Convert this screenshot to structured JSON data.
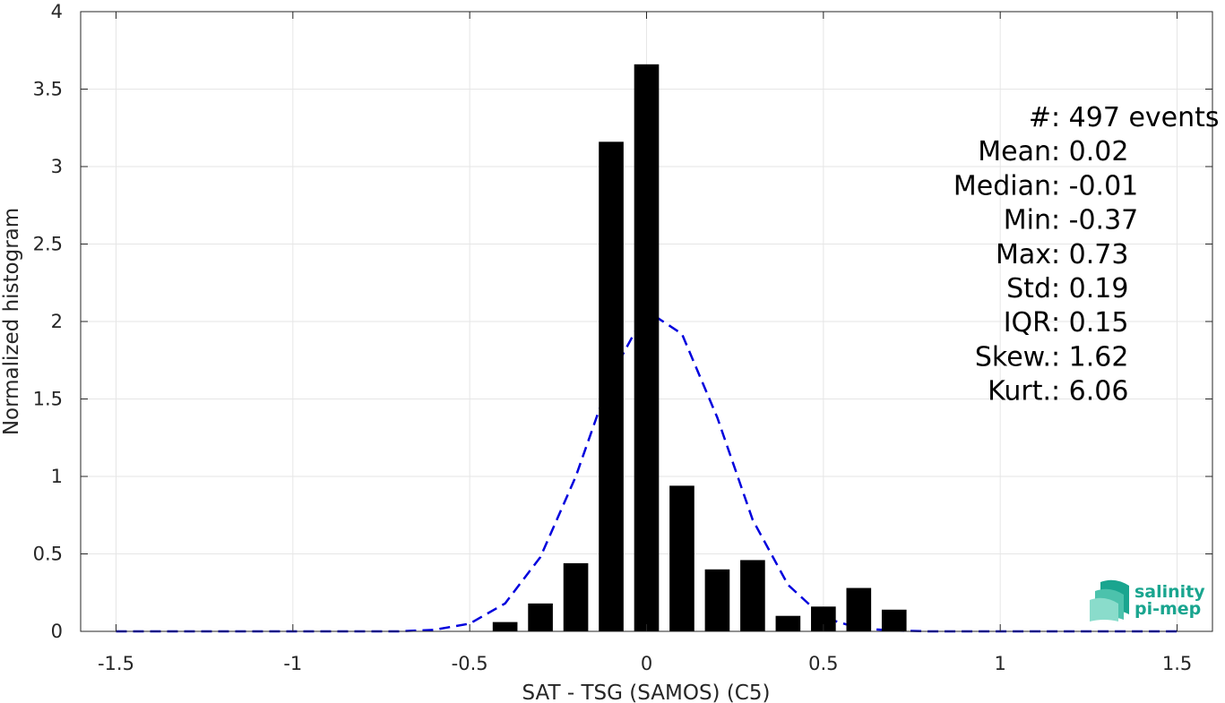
{
  "chart_data": {
    "type": "bar",
    "xlabel": "SAT - TSG (SAMOS) (C5)",
    "ylabel": "Normalized histogram",
    "xlim": [
      -1.6,
      1.6
    ],
    "ylim": [
      0,
      4
    ],
    "xticks": [
      -1.5,
      -1,
      -0.5,
      0,
      0.5,
      1,
      1.5
    ],
    "xtick_labels": [
      "-1.5",
      "-1",
      "-0.5",
      "0",
      "0.5",
      "1",
      "1.5"
    ],
    "yticks": [
      0,
      0.5,
      1,
      1.5,
      2,
      2.5,
      3,
      3.5,
      4
    ],
    "ytick_labels": [
      "0",
      "0.5",
      "1",
      "1.5",
      "2",
      "2.5",
      "3",
      "3.5",
      "4"
    ],
    "grid": true,
    "bar_width": 0.07,
    "bar_color": "#000000",
    "bars": {
      "x": [
        -0.4,
        -0.3,
        -0.2,
        -0.1,
        0.0,
        0.1,
        0.2,
        0.3,
        0.4,
        0.5,
        0.6,
        0.7
      ],
      "values": [
        0.06,
        0.18,
        0.44,
        3.16,
        3.66,
        0.94,
        0.4,
        0.46,
        0.1,
        0.16,
        0.28,
        0.14
      ]
    },
    "fit_curve": {
      "style": "dashed",
      "color": "#0000dd",
      "x": [
        -1.5,
        -1.4,
        -1.3,
        -1.2,
        -1.1,
        -1.0,
        -0.9,
        -0.8,
        -0.7,
        -0.6,
        -0.5,
        -0.4,
        -0.3,
        -0.2,
        -0.1,
        0.0,
        0.1,
        0.2,
        0.3,
        0.4,
        0.5,
        0.6,
        0.7,
        0.8,
        0.9,
        1.0,
        1.1,
        1.2,
        1.3,
        1.4,
        1.5
      ],
      "y": [
        0,
        0,
        0,
        0,
        0,
        0,
        0,
        0,
        0,
        0.01,
        0.05,
        0.18,
        0.48,
        1.0,
        1.65,
        2.07,
        1.92,
        1.38,
        0.72,
        0.3,
        0.09,
        0.02,
        0.005,
        0,
        0,
        0,
        0,
        0,
        0,
        0,
        0
      ]
    },
    "stats": [
      {
        "label": "#  ",
        "value": ": 497 events"
      },
      {
        "label": "Mean ",
        "value": ": 0.02"
      },
      {
        "label": "Median ",
        "value": ": -0.01"
      },
      {
        "label": "Min ",
        "value": ": -0.37"
      },
      {
        "label": "Max ",
        "value": ": 0.73"
      },
      {
        "label": "Std ",
        "value": ": 0.19"
      },
      {
        "label": "IQR ",
        "value": ": 0.15"
      },
      {
        "label": "Skew. ",
        "value": ": 1.62"
      },
      {
        "label": "Kurt. ",
        "value": ": 6.06"
      }
    ]
  },
  "logo": {
    "line1": "salinity",
    "line2": "pi-mep",
    "color": "#1aa58f"
  }
}
